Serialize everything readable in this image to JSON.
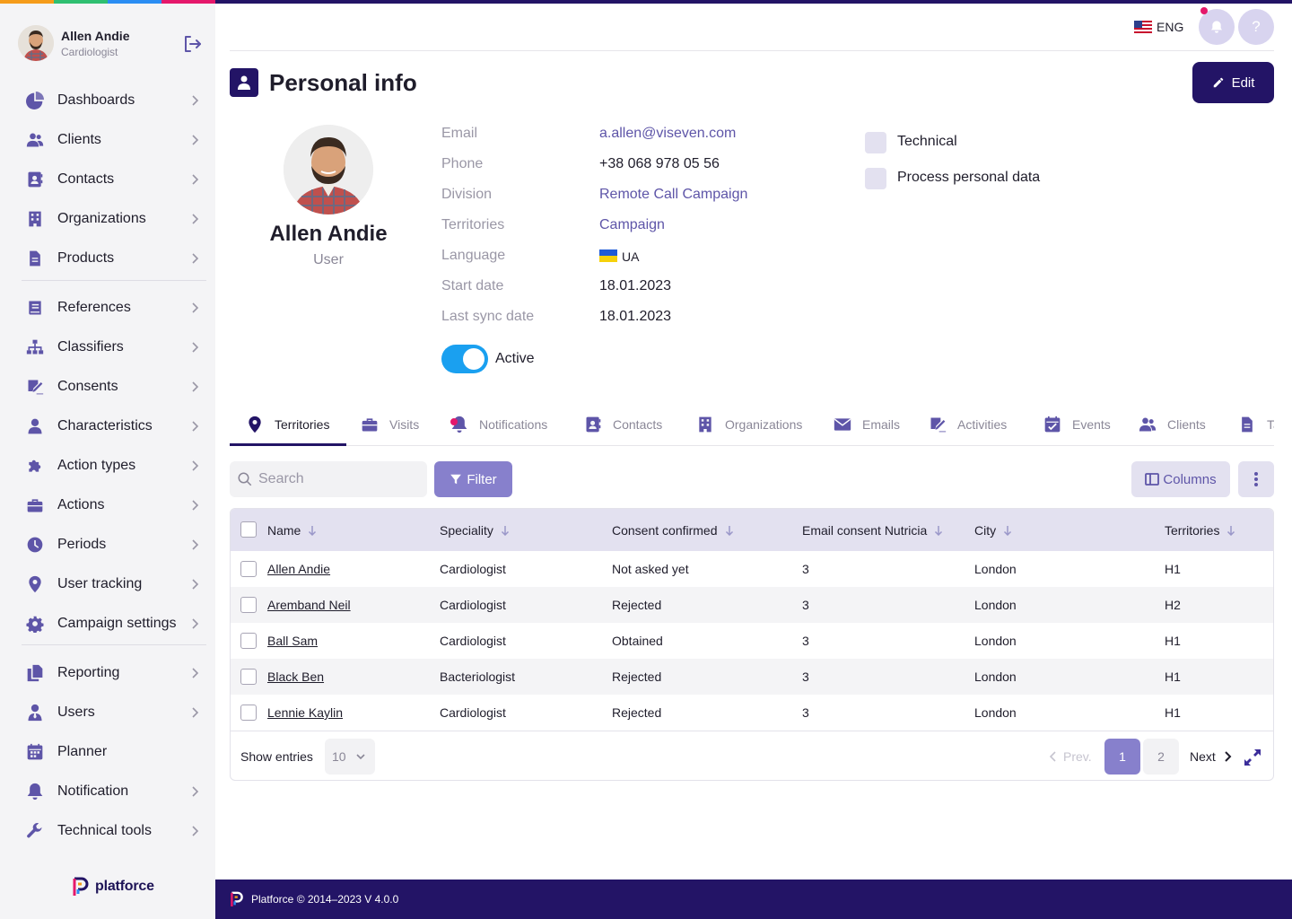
{
  "topbar": {
    "stripe_colors": [
      "#f59c1a",
      "#2fbf71",
      "#2a8df3",
      "#e5186b",
      "#231466"
    ],
    "language": "ENG",
    "notification_icon": "bell-icon",
    "help_icon": "question-icon",
    "help_label": "?"
  },
  "sidebar": {
    "user": {
      "name": "Allen Andie",
      "role": "Cardiologist"
    },
    "items": [
      {
        "label": "Dashboards",
        "icon": "pie-chart-icon",
        "has_chevron": true
      },
      {
        "label": "Clients",
        "icon": "users-icon",
        "has_chevron": true
      },
      {
        "label": "Contacts",
        "icon": "address-book-icon",
        "has_chevron": true
      },
      {
        "label": "Organizations",
        "icon": "building-icon",
        "has_chevron": true
      },
      {
        "label": "Products",
        "icon": "file-icon",
        "has_chevron": true
      },
      {
        "label": "References",
        "icon": "book-icon",
        "has_chevron": true
      },
      {
        "label": "Classifiers",
        "icon": "sitemap-icon",
        "has_chevron": true
      },
      {
        "label": "Consents",
        "icon": "signature-icon",
        "has_chevron": true
      },
      {
        "label": "Characteristics",
        "icon": "user-icon",
        "has_chevron": true
      },
      {
        "label": "Action types",
        "icon": "puzzle-icon",
        "has_chevron": true
      },
      {
        "label": "Actions",
        "icon": "briefcase-icon",
        "has_chevron": true
      },
      {
        "label": "Periods",
        "icon": "clock-icon",
        "has_chevron": true
      },
      {
        "label": "User tracking",
        "icon": "map-pin-icon",
        "has_chevron": true
      },
      {
        "label": "Campaign settings",
        "icon": "gear-icon",
        "has_chevron": true
      },
      {
        "label": "Reporting",
        "icon": "copy-icon",
        "has_chevron": true
      },
      {
        "label": "Users",
        "icon": "user-tie-icon",
        "has_chevron": true
      },
      {
        "label": "Planner",
        "icon": "calendar-icon",
        "has_chevron": false
      },
      {
        "label": "Notification",
        "icon": "bell-icon",
        "has_chevron": true
      },
      {
        "label": "Technical tools",
        "icon": "wrench-icon",
        "has_chevron": true
      }
    ],
    "brand": "platforce"
  },
  "page": {
    "title": "Personal info",
    "edit_label": "Edit"
  },
  "profile": {
    "name": "Allen Andie",
    "role": "User",
    "fields": [
      {
        "label": "Email",
        "value": "a.allen@viseven.com",
        "link": true
      },
      {
        "label": "Phone",
        "value": "+38 068 978 05 56",
        "link": false
      },
      {
        "label": "Division",
        "value": "Remote Call Campaign",
        "link": true
      },
      {
        "label": "Territories",
        "value": "Campaign",
        "link": true
      },
      {
        "label": "Language",
        "value": "UA",
        "link": false
      },
      {
        "label": "Start date",
        "value": "18.01.2023",
        "link": false
      },
      {
        "label": "Last sync date",
        "value": "18.01.2023",
        "link": false
      }
    ],
    "active_label": "Active",
    "active": true,
    "checkboxes": [
      {
        "label": "Technical",
        "checked": false
      },
      {
        "label": "Process personal data",
        "checked": false
      }
    ]
  },
  "tabs": [
    {
      "label": "Territories",
      "icon": "map-pin-icon",
      "active": true
    },
    {
      "label": "Visits",
      "icon": "briefcase-icon",
      "active": false
    },
    {
      "label": "Notifications",
      "icon": "bell-icon",
      "active": false
    },
    {
      "label": "Contacts",
      "icon": "address-book-icon",
      "active": false
    },
    {
      "label": "Organizations",
      "icon": "building-icon",
      "active": false
    },
    {
      "label": "Emails",
      "icon": "envelope-icon",
      "active": false
    },
    {
      "label": "Activities",
      "icon": "signature-icon",
      "active": false
    },
    {
      "label": "Events",
      "icon": "calendar-check-icon",
      "active": false
    },
    {
      "label": "Clients",
      "icon": "users-icon",
      "active": false
    },
    {
      "label": "Ta",
      "icon": "file-icon",
      "active": false
    }
  ],
  "toolbar": {
    "search_placeholder": "Search",
    "filter_label": "Filter",
    "columns_label": "Columns"
  },
  "table": {
    "columns": [
      "Name",
      "Speciality",
      "Consent confirmed",
      "Email consent Nutricia",
      "City",
      "Territories"
    ],
    "rows": [
      [
        "Allen Andie",
        "Cardiologist",
        "Not asked yet",
        "3",
        "London",
        "H1"
      ],
      [
        "Aremband Neil",
        "Cardiologist",
        "Rejected",
        "3",
        "London",
        "H2"
      ],
      [
        "Ball Sam",
        "Cardiologist",
        "Obtained",
        "3",
        "London",
        "H1"
      ],
      [
        "Black Ben",
        "Bacteriologist",
        "Rejected",
        "3",
        "London",
        "H1"
      ],
      [
        "Lennie Kaylin",
        "Cardiologist",
        "Rejected",
        "3",
        "London",
        "H1"
      ]
    ]
  },
  "pagination": {
    "show_entries_label": "Show entries",
    "entries_value": "10",
    "prev_label": "Prev.",
    "next_label": "Next",
    "pages": [
      "1",
      "2"
    ],
    "current_page": "1"
  },
  "footer": {
    "text": "Platforce © 2014–2023 V 4.0.0"
  },
  "colors": {
    "brand": "#231466",
    "accent": "#8780cc",
    "link": "#5e55a8",
    "toggle": "#1aa0f0",
    "notif_dot": "#e5186b"
  }
}
